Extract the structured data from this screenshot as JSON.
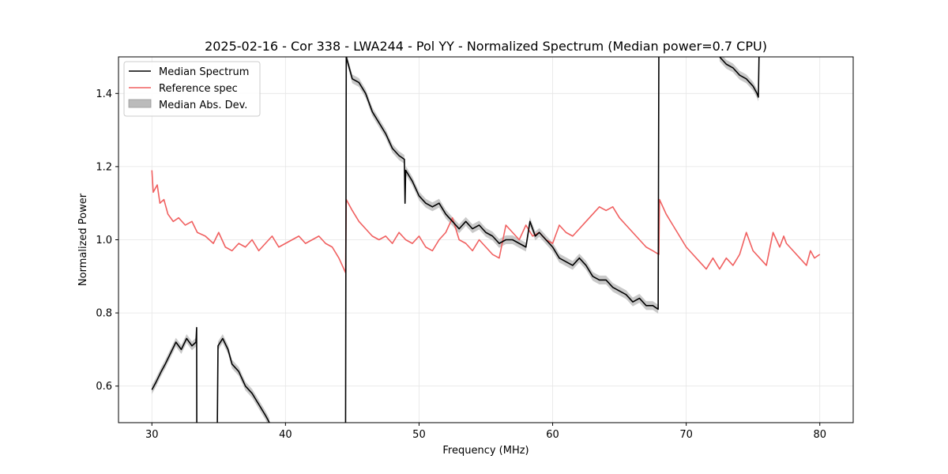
{
  "chart_data": {
    "type": "line",
    "title": "2025-02-16 - Cor 338 - LWA244 - Pol YY - Normalized Spectrum (Median power=0.7 CPU)",
    "xlabel": "Frequency (MHz)",
    "ylabel": "Normalized Power",
    "xlim": [
      27.5,
      82.5
    ],
    "ylim": [
      0.5,
      1.5
    ],
    "xticks": [
      30,
      40,
      50,
      60,
      70,
      80
    ],
    "xtick_labels": [
      "30",
      "40",
      "50",
      "60",
      "70",
      "80"
    ],
    "yticks": [
      0.6,
      0.8,
      1.0,
      1.2,
      1.4
    ],
    "ytick_labels": [
      "0.6",
      "0.8",
      "1.0",
      "1.2",
      "1.4"
    ],
    "grid": true,
    "legend_position": "upper-left",
    "legend": [
      {
        "label": "Median Spectrum",
        "kind": "line",
        "color": "#000000"
      },
      {
        "label": "Reference spec",
        "kind": "line",
        "color": "#f06060"
      },
      {
        "label": "Median Abs. Dev.",
        "kind": "patch",
        "color": "#bbbbbb"
      }
    ],
    "series": [
      {
        "name": "Median Spectrum",
        "color": "#000000",
        "segments": [
          [
            [
              30.0,
              0.59
            ],
            [
              30.3,
              0.61
            ],
            [
              30.7,
              0.64
            ],
            [
              31.0,
              0.66
            ],
            [
              31.4,
              0.69
            ],
            [
              31.8,
              0.72
            ],
            [
              32.2,
              0.7
            ],
            [
              32.6,
              0.73
            ],
            [
              33.0,
              0.71
            ],
            [
              33.3,
              0.72
            ],
            [
              33.35,
              0.76
            ],
            [
              33.36,
              0.5
            ]
          ],
          [
            [
              34.9,
              0.5
            ],
            [
              34.95,
              0.71
            ],
            [
              35.3,
              0.73
            ],
            [
              35.7,
              0.7
            ],
            [
              36.0,
              0.66
            ],
            [
              36.5,
              0.64
            ],
            [
              37.0,
              0.6
            ],
            [
              37.5,
              0.58
            ],
            [
              38.0,
              0.55
            ],
            [
              38.5,
              0.52
            ],
            [
              38.8,
              0.5
            ]
          ],
          [
            [
              44.5,
              0.5
            ],
            [
              44.55,
              1.5
            ],
            [
              45.0,
              1.44
            ],
            [
              45.5,
              1.43
            ],
            [
              46.0,
              1.4
            ],
            [
              46.5,
              1.35
            ],
            [
              47.0,
              1.32
            ],
            [
              47.5,
              1.29
            ],
            [
              48.0,
              1.25
            ],
            [
              48.5,
              1.23
            ],
            [
              48.9,
              1.22
            ],
            [
              48.95,
              1.1
            ],
            [
              49.0,
              1.19
            ],
            [
              49.5,
              1.16
            ],
            [
              50.0,
              1.12
            ],
            [
              50.5,
              1.1
            ],
            [
              51.0,
              1.09
            ],
            [
              51.5,
              1.1
            ],
            [
              52.0,
              1.07
            ],
            [
              52.5,
              1.05
            ],
            [
              53.0,
              1.03
            ],
            [
              53.5,
              1.05
            ],
            [
              54.0,
              1.03
            ],
            [
              54.5,
              1.04
            ],
            [
              55.0,
              1.02
            ],
            [
              55.5,
              1.01
            ],
            [
              56.0,
              0.99
            ],
            [
              56.5,
              1.0
            ],
            [
              57.0,
              1.0
            ],
            [
              57.5,
              0.99
            ],
            [
              58.0,
              0.98
            ],
            [
              58.3,
              1.05
            ],
            [
              58.7,
              1.01
            ],
            [
              59.0,
              1.02
            ],
            [
              59.5,
              1.0
            ],
            [
              60.0,
              0.98
            ],
            [
              60.5,
              0.95
            ],
            [
              61.0,
              0.94
            ],
            [
              61.5,
              0.93
            ],
            [
              62.0,
              0.95
            ],
            [
              62.5,
              0.93
            ],
            [
              63.0,
              0.9
            ],
            [
              63.5,
              0.89
            ],
            [
              64.0,
              0.89
            ],
            [
              64.5,
              0.87
            ],
            [
              65.0,
              0.86
            ],
            [
              65.5,
              0.85
            ],
            [
              66.0,
              0.83
            ],
            [
              66.5,
              0.84
            ],
            [
              67.0,
              0.82
            ],
            [
              67.5,
              0.82
            ],
            [
              67.9,
              0.81
            ],
            [
              67.95,
              1.5
            ]
          ],
          [
            [
              72.5,
              1.5
            ],
            [
              73.0,
              1.48
            ],
            [
              73.5,
              1.47
            ],
            [
              74.0,
              1.45
            ],
            [
              74.5,
              1.44
            ],
            [
              75.0,
              1.42
            ],
            [
              75.3,
              1.4
            ],
            [
              75.4,
              1.39
            ],
            [
              75.45,
              1.5
            ]
          ]
        ]
      },
      {
        "name": "Reference spec",
        "color": "#f06060",
        "points": [
          [
            30.0,
            1.19
          ],
          [
            30.1,
            1.13
          ],
          [
            30.4,
            1.15
          ],
          [
            30.6,
            1.1
          ],
          [
            30.9,
            1.11
          ],
          [
            31.2,
            1.07
          ],
          [
            31.6,
            1.05
          ],
          [
            32.0,
            1.06
          ],
          [
            32.5,
            1.04
          ],
          [
            33.0,
            1.05
          ],
          [
            33.4,
            1.02
          ],
          [
            34.0,
            1.01
          ],
          [
            34.6,
            0.99
          ],
          [
            35.0,
            1.02
          ],
          [
            35.5,
            0.98
          ],
          [
            36.0,
            0.97
          ],
          [
            36.5,
            0.99
          ],
          [
            37.0,
            0.98
          ],
          [
            37.5,
            1.0
          ],
          [
            38.0,
            0.97
          ],
          [
            38.5,
            0.99
          ],
          [
            39.0,
            1.01
          ],
          [
            39.5,
            0.98
          ],
          [
            40.0,
            0.99
          ],
          [
            40.5,
            1.0
          ],
          [
            41.0,
            1.01
          ],
          [
            41.5,
            0.99
          ],
          [
            42.0,
            1.0
          ],
          [
            42.5,
            1.01
          ],
          [
            43.0,
            0.99
          ],
          [
            43.5,
            0.98
          ],
          [
            44.0,
            0.95
          ],
          [
            44.5,
            0.91
          ],
          [
            44.55,
            1.11
          ],
          [
            45.0,
            1.08
          ],
          [
            45.5,
            1.05
          ],
          [
            46.0,
            1.03
          ],
          [
            46.5,
            1.01
          ],
          [
            47.0,
            1.0
          ],
          [
            47.5,
            1.01
          ],
          [
            48.0,
            0.99
          ],
          [
            48.5,
            1.02
          ],
          [
            49.0,
            1.0
          ],
          [
            49.5,
            0.99
          ],
          [
            50.0,
            1.01
          ],
          [
            50.5,
            0.98
          ],
          [
            51.0,
            0.97
          ],
          [
            51.5,
            1.0
          ],
          [
            52.0,
            1.02
          ],
          [
            52.5,
            1.06
          ],
          [
            53.0,
            1.0
          ],
          [
            53.5,
            0.99
          ],
          [
            54.0,
            0.97
          ],
          [
            54.5,
            1.0
          ],
          [
            55.0,
            0.98
          ],
          [
            55.5,
            0.96
          ],
          [
            56.0,
            0.95
          ],
          [
            56.5,
            1.04
          ],
          [
            57.0,
            1.02
          ],
          [
            57.5,
            1.0
          ],
          [
            58.0,
            1.04
          ],
          [
            58.5,
            1.01
          ],
          [
            59.0,
            1.02
          ],
          [
            59.5,
            1.0
          ],
          [
            60.0,
            0.99
          ],
          [
            60.5,
            1.04
          ],
          [
            61.0,
            1.02
          ],
          [
            61.5,
            1.01
          ],
          [
            62.0,
            1.03
          ],
          [
            62.5,
            1.05
          ],
          [
            63.0,
            1.07
          ],
          [
            63.5,
            1.09
          ],
          [
            64.0,
            1.08
          ],
          [
            64.5,
            1.09
          ],
          [
            65.0,
            1.06
          ],
          [
            65.5,
            1.04
          ],
          [
            66.0,
            1.02
          ],
          [
            66.5,
            1.0
          ],
          [
            67.0,
            0.98
          ],
          [
            67.5,
            0.97
          ],
          [
            67.95,
            0.96
          ],
          [
            68.0,
            1.11
          ],
          [
            68.5,
            1.07
          ],
          [
            69.0,
            1.04
          ],
          [
            69.5,
            1.01
          ],
          [
            70.0,
            0.98
          ],
          [
            70.5,
            0.96
          ],
          [
            71.0,
            0.94
          ],
          [
            71.5,
            0.92
          ],
          [
            72.0,
            0.95
          ],
          [
            72.5,
            0.92
          ],
          [
            73.0,
            0.95
          ],
          [
            73.5,
            0.93
          ],
          [
            74.0,
            0.96
          ],
          [
            74.5,
            1.02
          ],
          [
            75.0,
            0.97
          ],
          [
            75.5,
            0.95
          ],
          [
            76.0,
            0.93
          ],
          [
            76.5,
            1.02
          ],
          [
            77.0,
            0.98
          ],
          [
            77.3,
            1.01
          ],
          [
            77.5,
            0.99
          ],
          [
            78.0,
            0.97
          ],
          [
            78.5,
            0.95
          ],
          [
            79.0,
            0.93
          ],
          [
            79.3,
            0.97
          ],
          [
            79.6,
            0.95
          ],
          [
            80.0,
            0.96
          ]
        ]
      }
    ],
    "mad_band": {
      "name": "Median Abs. Dev.",
      "color": "#bbbbbb",
      "half_width": 0.012
    }
  }
}
